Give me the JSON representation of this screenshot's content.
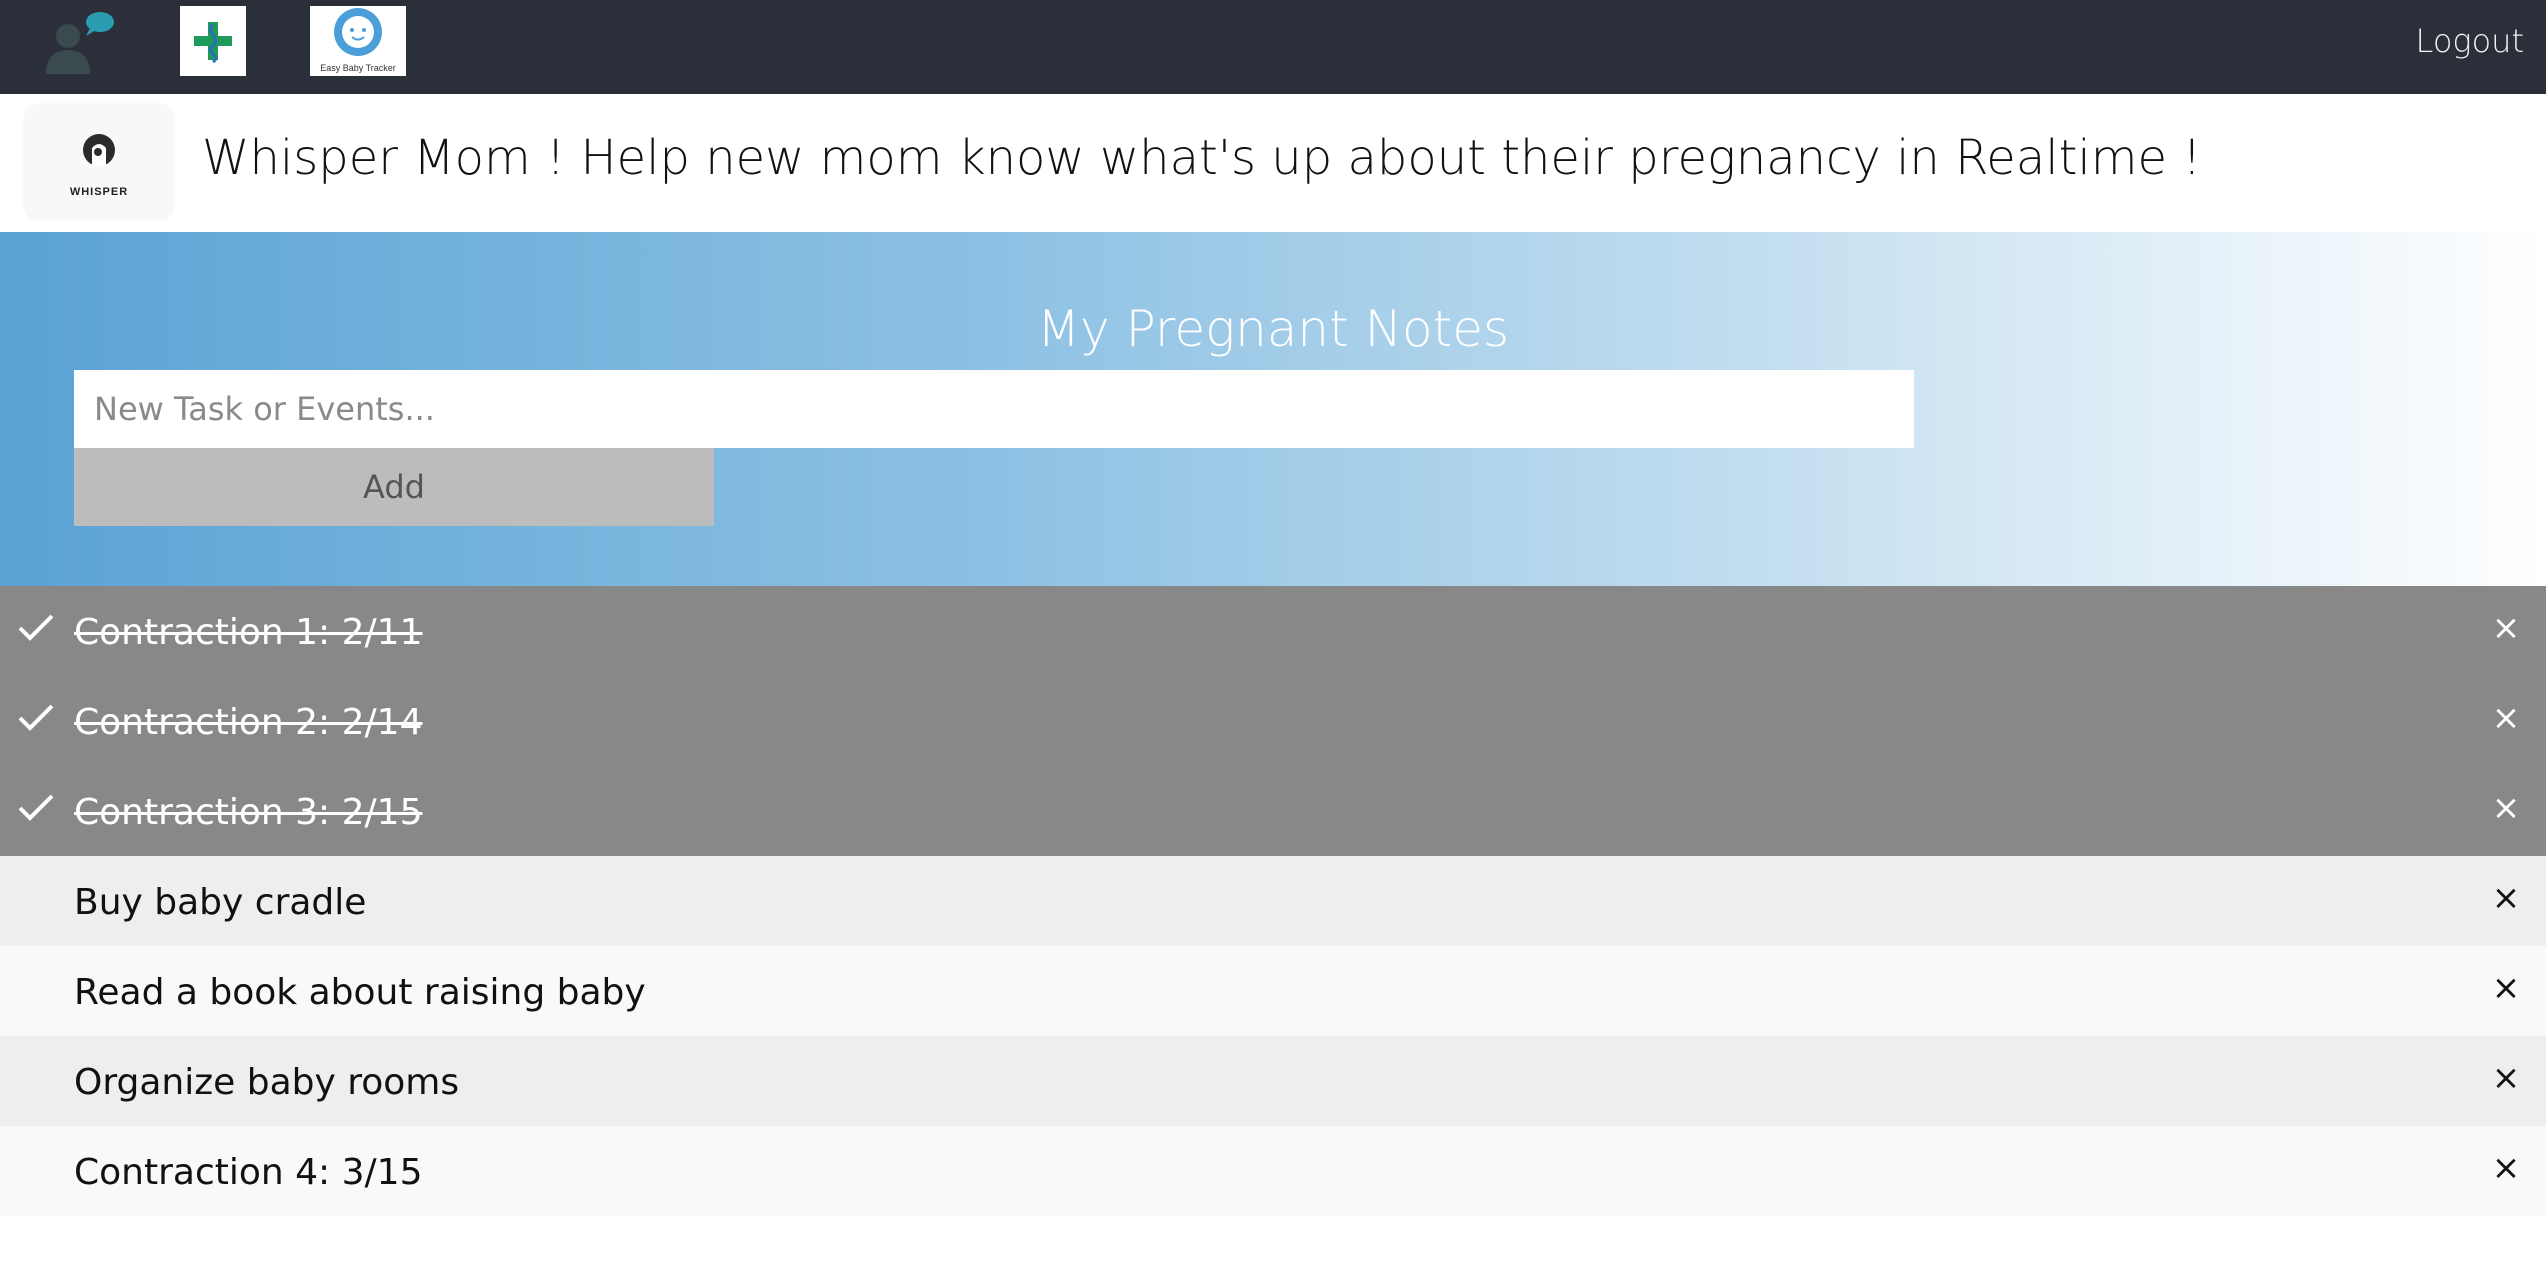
{
  "nav": {
    "logos": [
      "user-bubble-logo",
      "medical-cross-logo",
      "easy-baby-tracker-logo"
    ],
    "easy_baby_tracker_text": "Easy Baby Tracker",
    "logout_label": "Logout"
  },
  "header": {
    "brand_text": "WHISPER",
    "title": "Whisper Mom ! Help new mom know what's up about their pregnancy in Realtime !"
  },
  "hero": {
    "title": "My Pregnant Notes",
    "input_placeholder": "New Task or Events...",
    "add_label": "Add"
  },
  "tasks": [
    {
      "label": "Contraction 1: 2/11",
      "done": true
    },
    {
      "label": "Contraction 2: 2/14",
      "done": true
    },
    {
      "label": "Contraction 3: 2/15",
      "done": true
    },
    {
      "label": "Buy baby cradle",
      "done": false
    },
    {
      "label": "Read a book about raising baby",
      "done": false
    },
    {
      "label": "Organize baby rooms",
      "done": false
    },
    {
      "label": "Contraction 4: 3/15",
      "done": false
    }
  ],
  "close_symbol": "×",
  "colors": {
    "nav_bg": "#2b2f3a",
    "checked_bg": "#888888",
    "row_odd": "#eeeeee",
    "row_even": "#f9f9f9",
    "accent_blue": "#5aa3d4",
    "logo_teal": "#2a9cb0",
    "logo_green": "#1e9a5a"
  }
}
